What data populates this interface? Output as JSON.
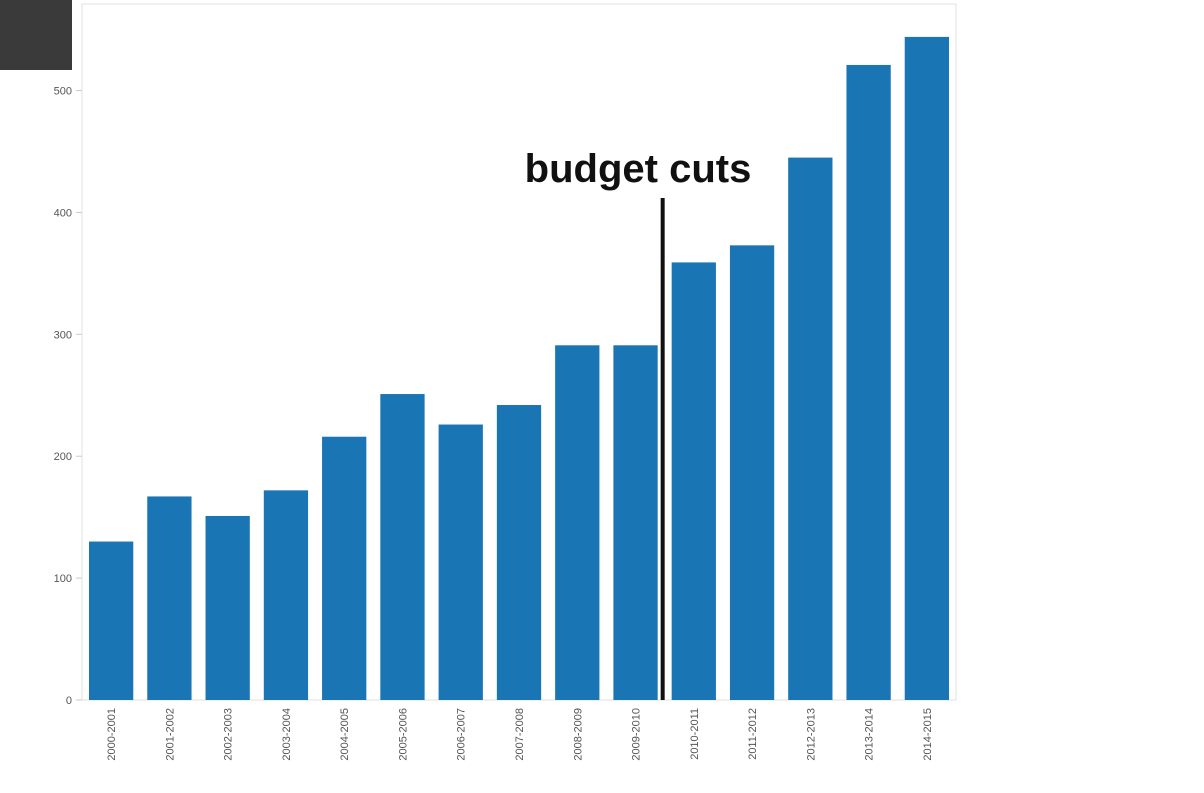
{
  "chart_data": {
    "type": "bar",
    "categories": [
      "2000-2001",
      "2001-2002",
      "2002-2003",
      "2003-2004",
      "2004-2005",
      "2005-2006",
      "2006-2007",
      "2007-2008",
      "2008-2009",
      "2009-2010",
      "2010-2011",
      "2011-2012",
      "2012-2013",
      "2013-2014",
      "2014-2015"
    ],
    "values": [
      130,
      167,
      151,
      172,
      216,
      251,
      226,
      242,
      291,
      291,
      359,
      373,
      445,
      521,
      544
    ],
    "color": "#1a75b5",
    "ylim": [
      0,
      571
    ],
    "yticks": [
      0,
      100,
      200,
      300,
      400,
      500
    ],
    "annotation": "budget cuts"
  }
}
